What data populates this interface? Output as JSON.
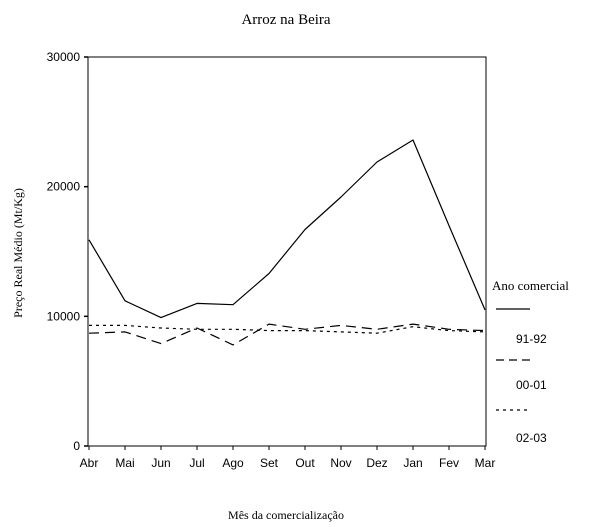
{
  "chart_data": {
    "type": "line",
    "title": "Arroz na Beira",
    "xlabel": "Mês da comercialização",
    "ylabel": "Preço Real Médio (Mt/Kg)",
    "categories": [
      "Abr",
      "Mai",
      "Jun",
      "Jul",
      "Ago",
      "Set",
      "Out",
      "Nov",
      "Dez",
      "Jan",
      "Fev",
      "Mar"
    ],
    "ylim": [
      0,
      30000
    ],
    "yticks": [
      "0",
      "10000",
      "20000",
      "30000"
    ],
    "grid": false,
    "legend_position": "right",
    "legend_title": "Ano comercial",
    "series": [
      {
        "name": "91-92",
        "style": "solid",
        "values": [
          15900,
          11200,
          9900,
          11000,
          10900,
          13300,
          16700,
          19200,
          21900,
          23600,
          17000,
          10500
        ]
      },
      {
        "name": "00-01",
        "style": "dashed",
        "values": [
          8700,
          8800,
          7900,
          9100,
          7800,
          9400,
          9000,
          9300,
          9000,
          9400,
          9000,
          8900
        ]
      },
      {
        "name": "02-03",
        "style": "dotted",
        "values": [
          9300,
          9300,
          9100,
          9000,
          9000,
          8900,
          8900,
          8800,
          8700,
          9200,
          8900,
          8800
        ]
      }
    ],
    "colors": {
      "line": "#000000",
      "background": "#ffffff"
    }
  }
}
